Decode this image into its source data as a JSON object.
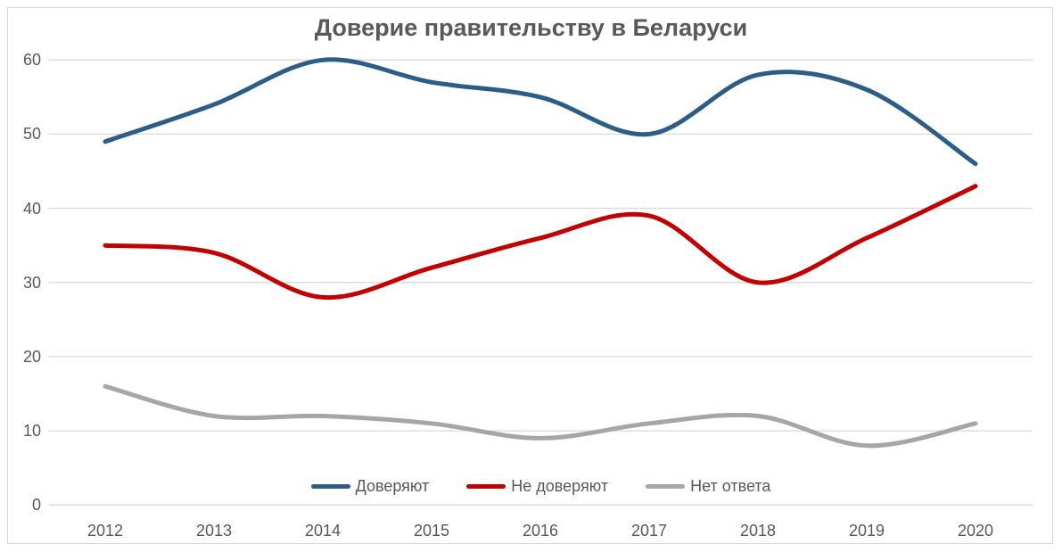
{
  "chart_data": {
    "type": "line",
    "title": "Доверие правительству в Беларуси",
    "categories": [
      "2012",
      "2013",
      "2014",
      "2015",
      "2016",
      "2017",
      "2018",
      "2019",
      "2020"
    ],
    "series": [
      {
        "name": "Доверяют",
        "color": "#2b5d87",
        "values": [
          49,
          54,
          60,
          57,
          55,
          50,
          58,
          56,
          46
        ]
      },
      {
        "name": "Не доверяют",
        "color": "#c00000",
        "values": [
          35,
          34,
          28,
          32,
          36,
          39,
          30,
          36,
          43
        ]
      },
      {
        "name": "Нет ответа",
        "color": "#a6a6a6",
        "values": [
          16,
          12,
          12,
          11,
          9,
          11,
          12,
          8,
          11
        ]
      }
    ],
    "ylabel": "",
    "xlabel": "",
    "ylim": [
      0,
      60
    ],
    "yticks": [
      0,
      10,
      20,
      30,
      40,
      50,
      60
    ],
    "grid": true,
    "smooth": true,
    "legend_position": "bottom-inside",
    "gridline_color": "#d9d9d9",
    "text_color": "#595959",
    "background_color": "#ffffff"
  }
}
